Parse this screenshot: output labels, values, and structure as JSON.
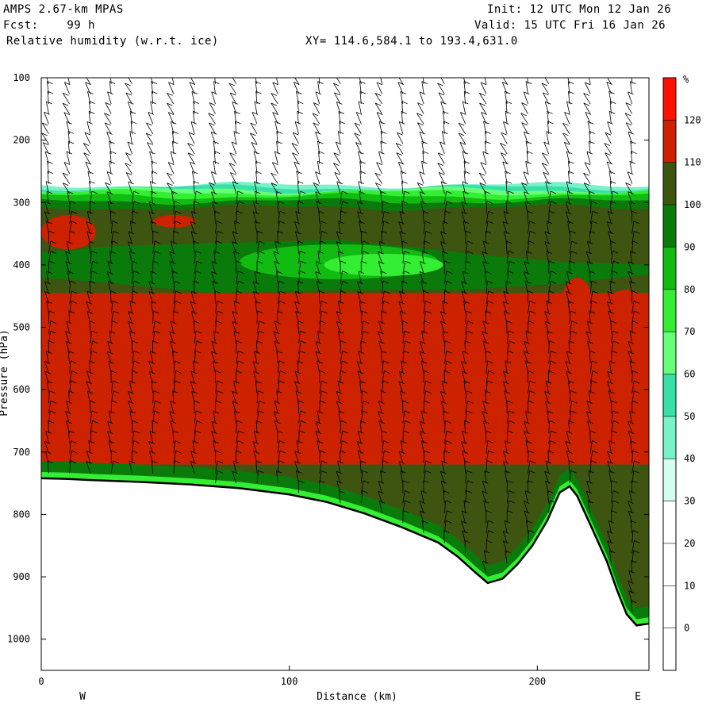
{
  "header": {
    "model": "AMPS 2.67-km MPAS",
    "fcst": "Fcst:    99 h",
    "field": "Relative humidity (w.r.t. ice)",
    "xy": "XY= 114.6,584.1 to 193.4,631.0",
    "init": "Init: 12 UTC Mon 12 Jan 26",
    "valid": "Valid: 15 UTC Fri 16 Jan 26"
  },
  "chart_data": {
    "type": "heatmap",
    "title": "Relative humidity (w.r.t. ice)",
    "xlabel": "Distance (km)",
    "ylabel": "Pressure (hPa)",
    "xlim": [
      0,
      245
    ],
    "ylim": [
      1050,
      100
    ],
    "x_ticks": [
      0,
      100,
      200
    ],
    "y_ticks": [
      100,
      200,
      300,
      400,
      500,
      600,
      700,
      800,
      900,
      1000
    ],
    "x_end_labels": {
      "left": "W",
      "right": "E"
    },
    "colorbar": {
      "unit": "%",
      "levels": [
        0,
        10,
        20,
        30,
        40,
        50,
        60,
        70,
        80,
        90,
        100,
        110,
        120
      ],
      "colors": [
        "#ffffff",
        "#ffffff",
        "#ffffff",
        "#ffffff",
        "#d4fff0",
        "#7af2c8",
        "#38e0a8",
        "#66ff77",
        "#33ee33",
        "#12bb12",
        "#0a7a0a",
        "#3e5512",
        "#cc2200",
        "#ff1100"
      ]
    },
    "terrain_profile": [
      {
        "x": 0,
        "p": 742
      },
      {
        "x": 10,
        "p": 743
      },
      {
        "x": 20,
        "p": 745
      },
      {
        "x": 40,
        "p": 748
      },
      {
        "x": 60,
        "p": 752
      },
      {
        "x": 80,
        "p": 758
      },
      {
        "x": 100,
        "p": 768
      },
      {
        "x": 115,
        "p": 780
      },
      {
        "x": 130,
        "p": 798
      },
      {
        "x": 145,
        "p": 820
      },
      {
        "x": 160,
        "p": 845
      },
      {
        "x": 168,
        "p": 868
      },
      {
        "x": 175,
        "p": 893
      },
      {
        "x": 180,
        "p": 910
      },
      {
        "x": 186,
        "p": 903
      },
      {
        "x": 192,
        "p": 880
      },
      {
        "x": 198,
        "p": 850
      },
      {
        "x": 204,
        "p": 810
      },
      {
        "x": 209,
        "p": 765
      },
      {
        "x": 213,
        "p": 755
      },
      {
        "x": 216,
        "p": 770
      },
      {
        "x": 222,
        "p": 822
      },
      {
        "x": 228,
        "p": 875
      },
      {
        "x": 232,
        "p": 920
      },
      {
        "x": 236,
        "p": 960
      },
      {
        "x": 240,
        "p": 978
      },
      {
        "x": 245,
        "p": 975
      }
    ],
    "moist_regions": [
      {
        "level": 110,
        "x": [
          0,
          22
        ],
        "p": [
          320,
          375
        ]
      },
      {
        "level": 110,
        "x": [
          45,
          62
        ],
        "p": [
          320,
          340
        ]
      },
      {
        "level": 110,
        "x": [
          17,
          50
        ],
        "p": [
          470,
          520
        ]
      },
      {
        "level": 110,
        "x": [
          56,
          67
        ],
        "p": [
          490,
          515
        ]
      },
      {
        "level": 110,
        "x": [
          84,
          91
        ],
        "p": [
          470,
          495
        ]
      },
      {
        "level": 110,
        "x": [
          100,
          108
        ],
        "p": [
          530,
          560
        ]
      },
      {
        "level": 110,
        "x": [
          180,
          194
        ],
        "p": [
          448,
          490
        ]
      },
      {
        "level": 110,
        "x": [
          194,
          205
        ],
        "p": [
          460,
          545
        ]
      },
      {
        "level": 110,
        "x": [
          206,
          226
        ],
        "p": [
          420,
          680
        ]
      },
      {
        "level": 110,
        "x": [
          226,
          245
        ],
        "p": [
          440,
          520
        ]
      }
    ]
  }
}
